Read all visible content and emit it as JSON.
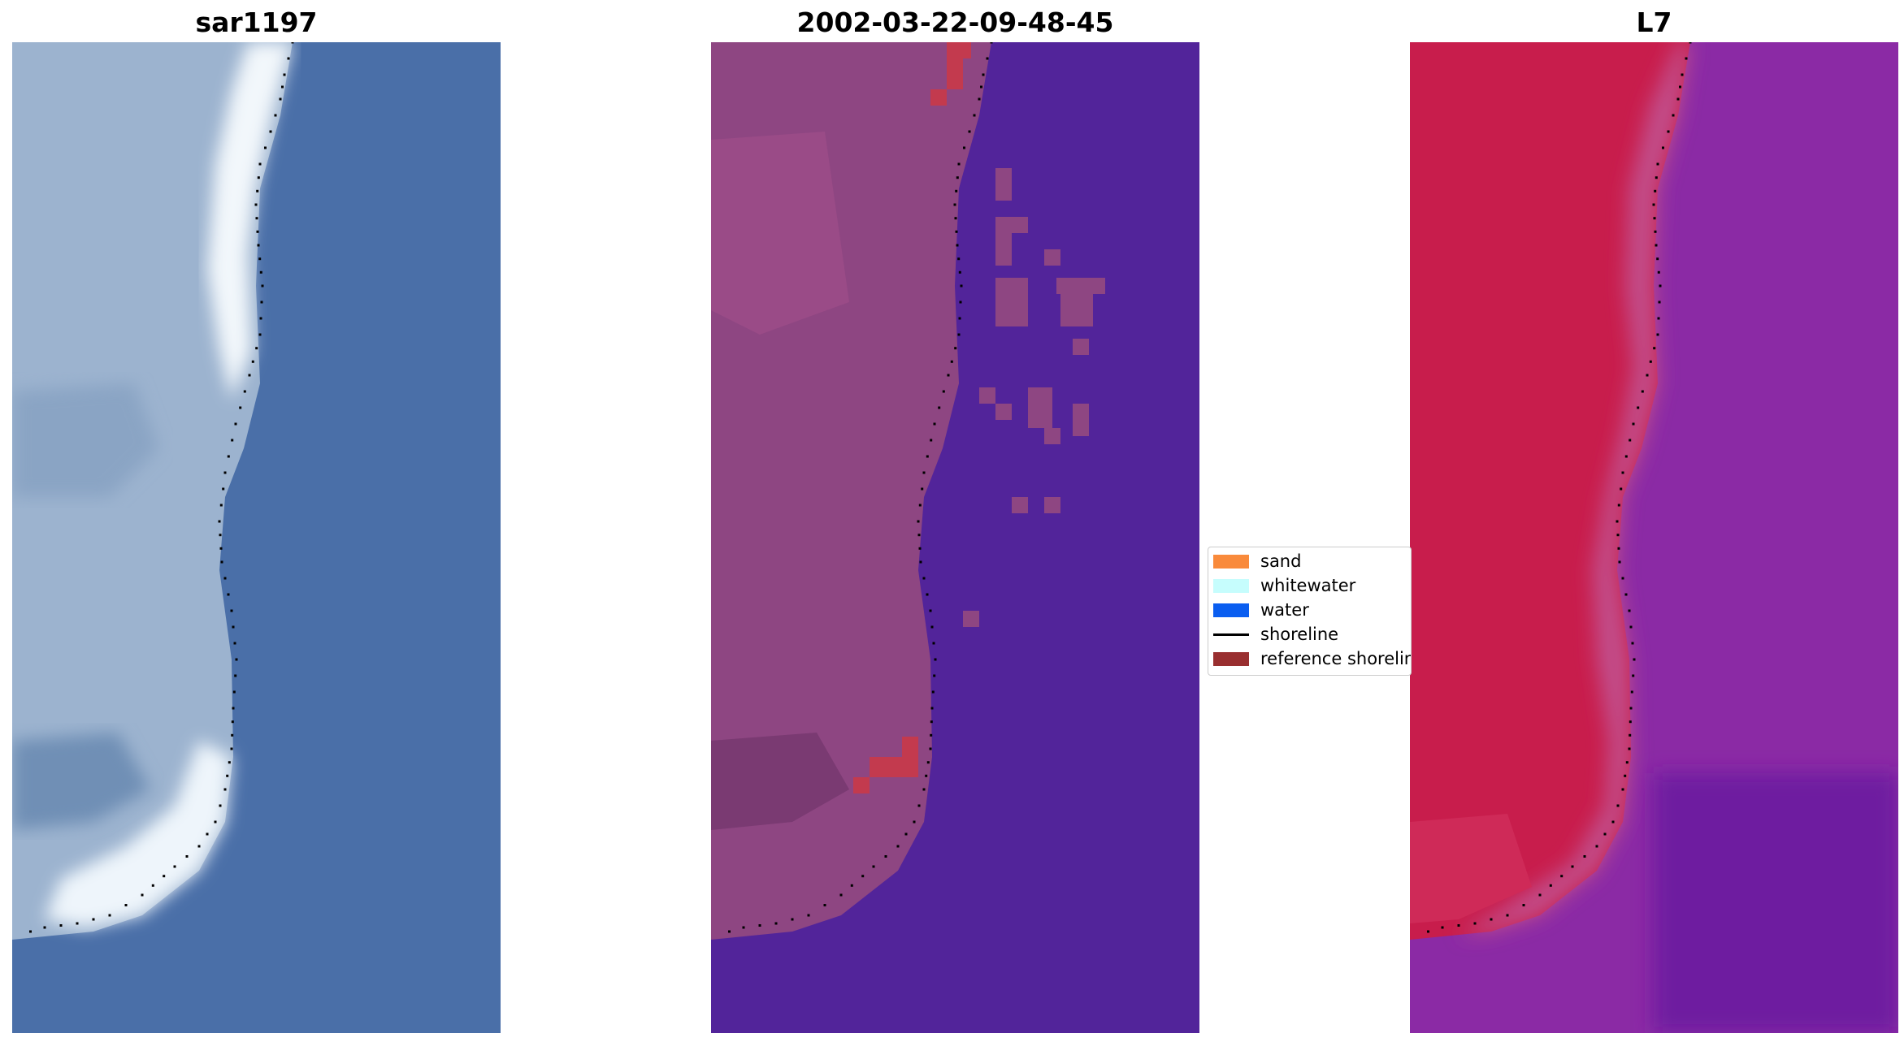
{
  "panels": [
    {
      "title": "sar1197",
      "image": "rgb-satellite-image"
    },
    {
      "title": "2002-03-22-09-48-45",
      "image": "classified-image"
    },
    {
      "title": "L7",
      "image": "mndwi-image"
    }
  ],
  "legend": {
    "items": [
      {
        "label": "sand",
        "color": "#f98a3b",
        "kind": "patch"
      },
      {
        "label": "whitewater",
        "color": "#c6fdfd",
        "kind": "patch"
      },
      {
        "label": "water",
        "color": "#0a5ef0",
        "kind": "patch"
      },
      {
        "label": "shoreline",
        "color": "#000000",
        "kind": "line"
      },
      {
        "label": "reference shoreline",
        "color": "#992f30",
        "kind": "patch"
      }
    ]
  },
  "colors": {
    "rgb_water": "#4a6fa8",
    "rgb_land": "#9cb3cf",
    "rgb_white": "#f2f7fb",
    "class_water": "#52249a",
    "class_land": "#8e4682",
    "class_red": "#c33a4e",
    "ndwi_water": "#8b2aa5",
    "ndwi_land": "#c81d4c",
    "shoreline_dots": "#000000"
  }
}
